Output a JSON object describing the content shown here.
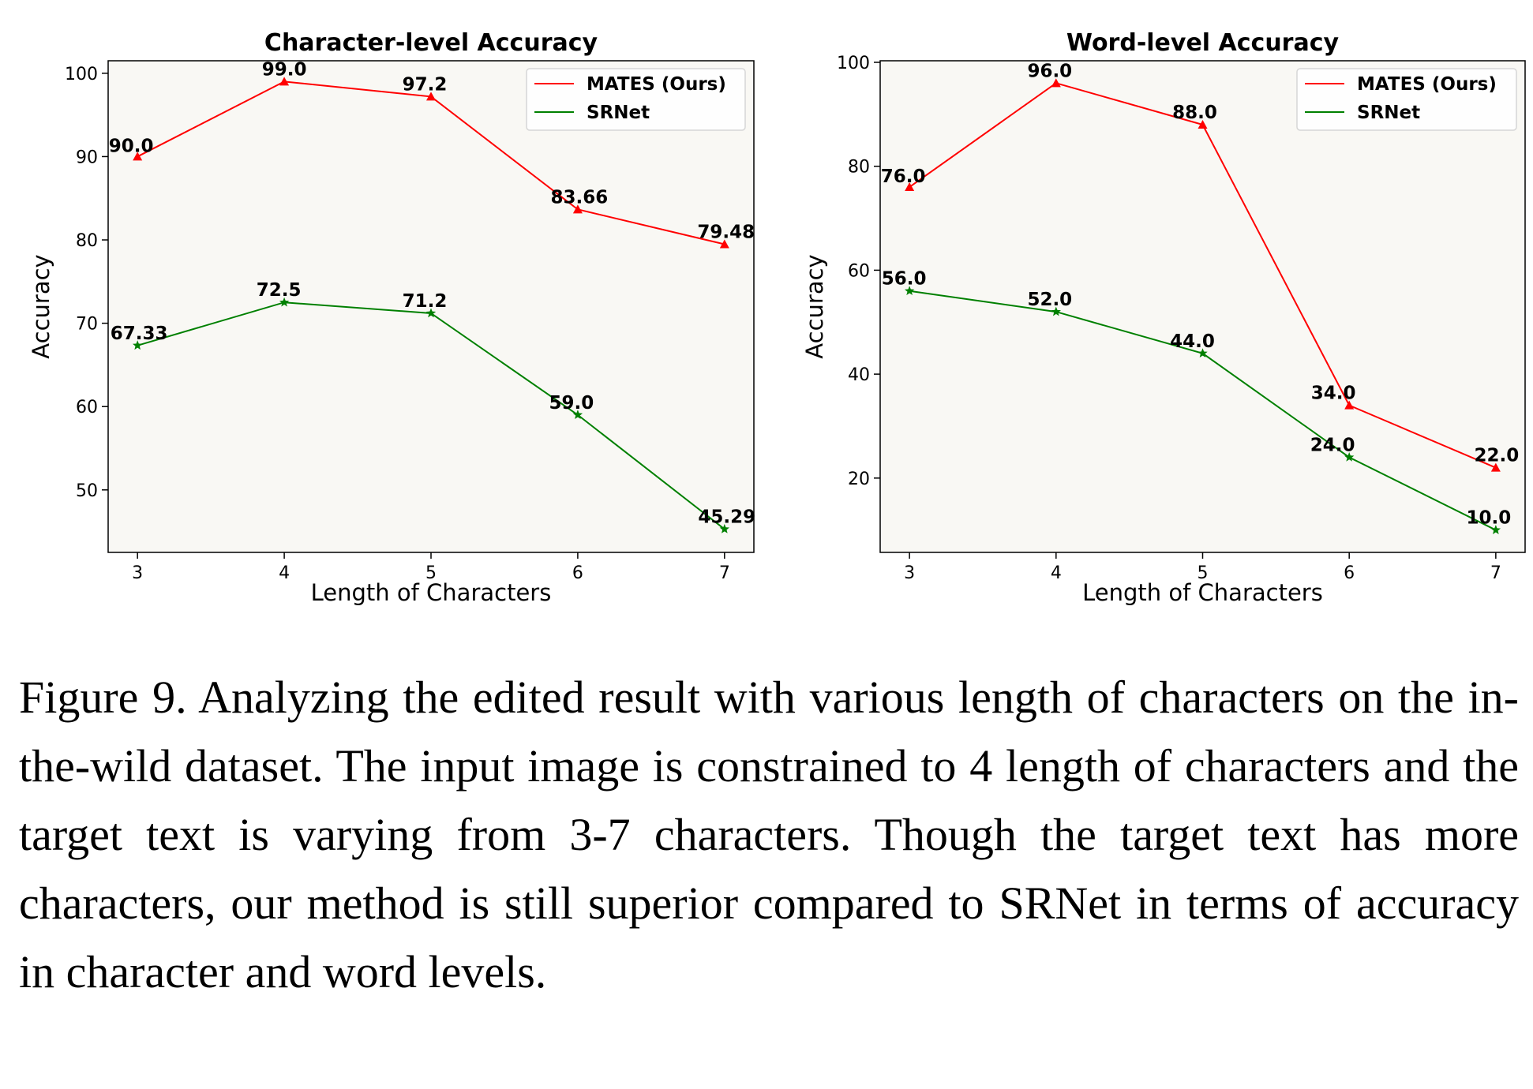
{
  "chart_data": [
    {
      "type": "line",
      "title": "Character-level Accuracy",
      "xlabel": "Length of Characters",
      "ylabel": "Accuracy",
      "x": [
        3,
        4,
        5,
        6,
        7
      ],
      "xticks": [
        "3",
        "4",
        "5",
        "6",
        "7"
      ],
      "xlim": [
        2.8,
        7.2
      ],
      "ylim": [
        42.5,
        101.5
      ],
      "yticks": [
        50,
        60,
        70,
        80,
        90,
        100
      ],
      "grid": false,
      "legend": "top-right",
      "series": [
        {
          "name": "MATES (Ours)",
          "color": "#ff0000",
          "marker": "triangle",
          "values": [
            90.0,
            99.0,
            97.2,
            83.66,
            79.48
          ],
          "labels": [
            "90.0",
            "99.0",
            "97.2",
            "83.66",
            "79.48"
          ]
        },
        {
          "name": "SRNet",
          "color": "#008000",
          "marker": "star",
          "values": [
            67.33,
            72.5,
            71.2,
            59.0,
            45.29
          ],
          "labels": [
            "67.33",
            "72.5",
            "71.2",
            "59.0",
            "45.29"
          ]
        }
      ]
    },
    {
      "type": "line",
      "title": "Word-level Accuracy",
      "xlabel": "Length of Characters",
      "ylabel": "Accuracy",
      "x": [
        3,
        4,
        5,
        6,
        7
      ],
      "xticks": [
        "3",
        "4",
        "5",
        "6",
        "7"
      ],
      "xlim": [
        2.8,
        7.2
      ],
      "ylim": [
        5.7,
        100.3
      ],
      "yticks": [
        20,
        40,
        60,
        80,
        100
      ],
      "grid": false,
      "legend": "top-right",
      "series": [
        {
          "name": "MATES (Ours)",
          "color": "#ff0000",
          "marker": "triangle",
          "values": [
            76.0,
            96.0,
            88.0,
            34.0,
            22.0
          ],
          "labels": [
            "76.0",
            "96.0",
            "88.0",
            "34.0",
            "22.0"
          ]
        },
        {
          "name": "SRNet",
          "color": "#008000",
          "marker": "star",
          "values": [
            56.0,
            52.0,
            44.0,
            24.0,
            10.0
          ],
          "labels": [
            "56.0",
            "52.0",
            "44.0",
            "24.0",
            "10.0"
          ]
        }
      ]
    }
  ],
  "caption": "Figure 9.  Analyzing the edited result with various length of characters on the in-the-wild dataset. The input image is constrained to 4 length of characters and the target text is varying from 3-7 characters.  Though the target text has more characters, our method is still superior compared to SRNet in terms of accuracy in character and word levels."
}
